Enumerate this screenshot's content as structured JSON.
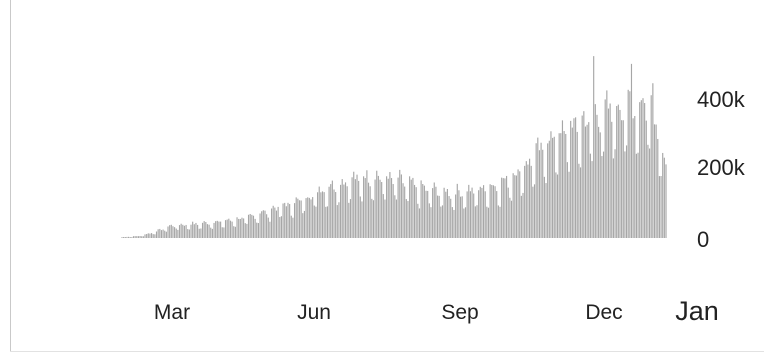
{
  "chart_data": {
    "type": "bar",
    "title": "",
    "xlabel": "",
    "ylabel": "",
    "x_start": "2020-02-14",
    "x_end": "2021-01-10",
    "x_ticks": [
      {
        "date": "2020-03-01",
        "label": "Mar"
      },
      {
        "date": "2020-06-01",
        "label": "Jun"
      },
      {
        "date": "2020-09-01",
        "label": "Sep"
      },
      {
        "date": "2020-12-01",
        "label": "Dec"
      },
      {
        "date": "2021-01-01",
        "label": "Jan"
      }
    ],
    "y_ticks": [
      {
        "value": 0,
        "label": "0"
      },
      {
        "value": 200000,
        "label": "200k"
      },
      {
        "value": 400000,
        "label": "400k"
      }
    ],
    "ylim": [
      0,
      460000
    ],
    "grid": false,
    "bar_color": "#a6a6a6",
    "trend_points": [
      {
        "date": "2020-02-14",
        "value": 2000
      },
      {
        "date": "2020-02-25",
        "value": 5000
      },
      {
        "date": "2020-03-05",
        "value": 15000
      },
      {
        "date": "2020-03-15",
        "value": 30000
      },
      {
        "date": "2020-04-01",
        "value": 35000
      },
      {
        "date": "2020-04-15",
        "value": 40000
      },
      {
        "date": "2020-05-01",
        "value": 50000
      },
      {
        "date": "2020-05-15",
        "value": 70000
      },
      {
        "date": "2020-06-01",
        "value": 90000
      },
      {
        "date": "2020-06-15",
        "value": 120000
      },
      {
        "date": "2020-07-01",
        "value": 140000
      },
      {
        "date": "2020-07-15",
        "value": 150000
      },
      {
        "date": "2020-08-01",
        "value": 140000
      },
      {
        "date": "2020-08-15",
        "value": 120000
      },
      {
        "date": "2020-09-01",
        "value": 110000
      },
      {
        "date": "2020-09-15",
        "value": 115000
      },
      {
        "date": "2020-10-01",
        "value": 130000
      },
      {
        "date": "2020-10-15",
        "value": 170000
      },
      {
        "date": "2020-11-01",
        "value": 240000
      },
      {
        "date": "2020-11-15",
        "value": 270000
      },
      {
        "date": "2020-12-01",
        "value": 300000
      },
      {
        "date": "2020-12-15",
        "value": 320000
      },
      {
        "date": "2021-01-01",
        "value": 330000
      },
      {
        "date": "2021-01-10",
        "value": 180000
      }
    ],
    "peaks": [
      {
        "date": "2020-11-27",
        "value": 470000
      },
      {
        "date": "2020-12-20",
        "value": 450000
      },
      {
        "date": "2021-01-02",
        "value": 400000
      }
    ]
  }
}
